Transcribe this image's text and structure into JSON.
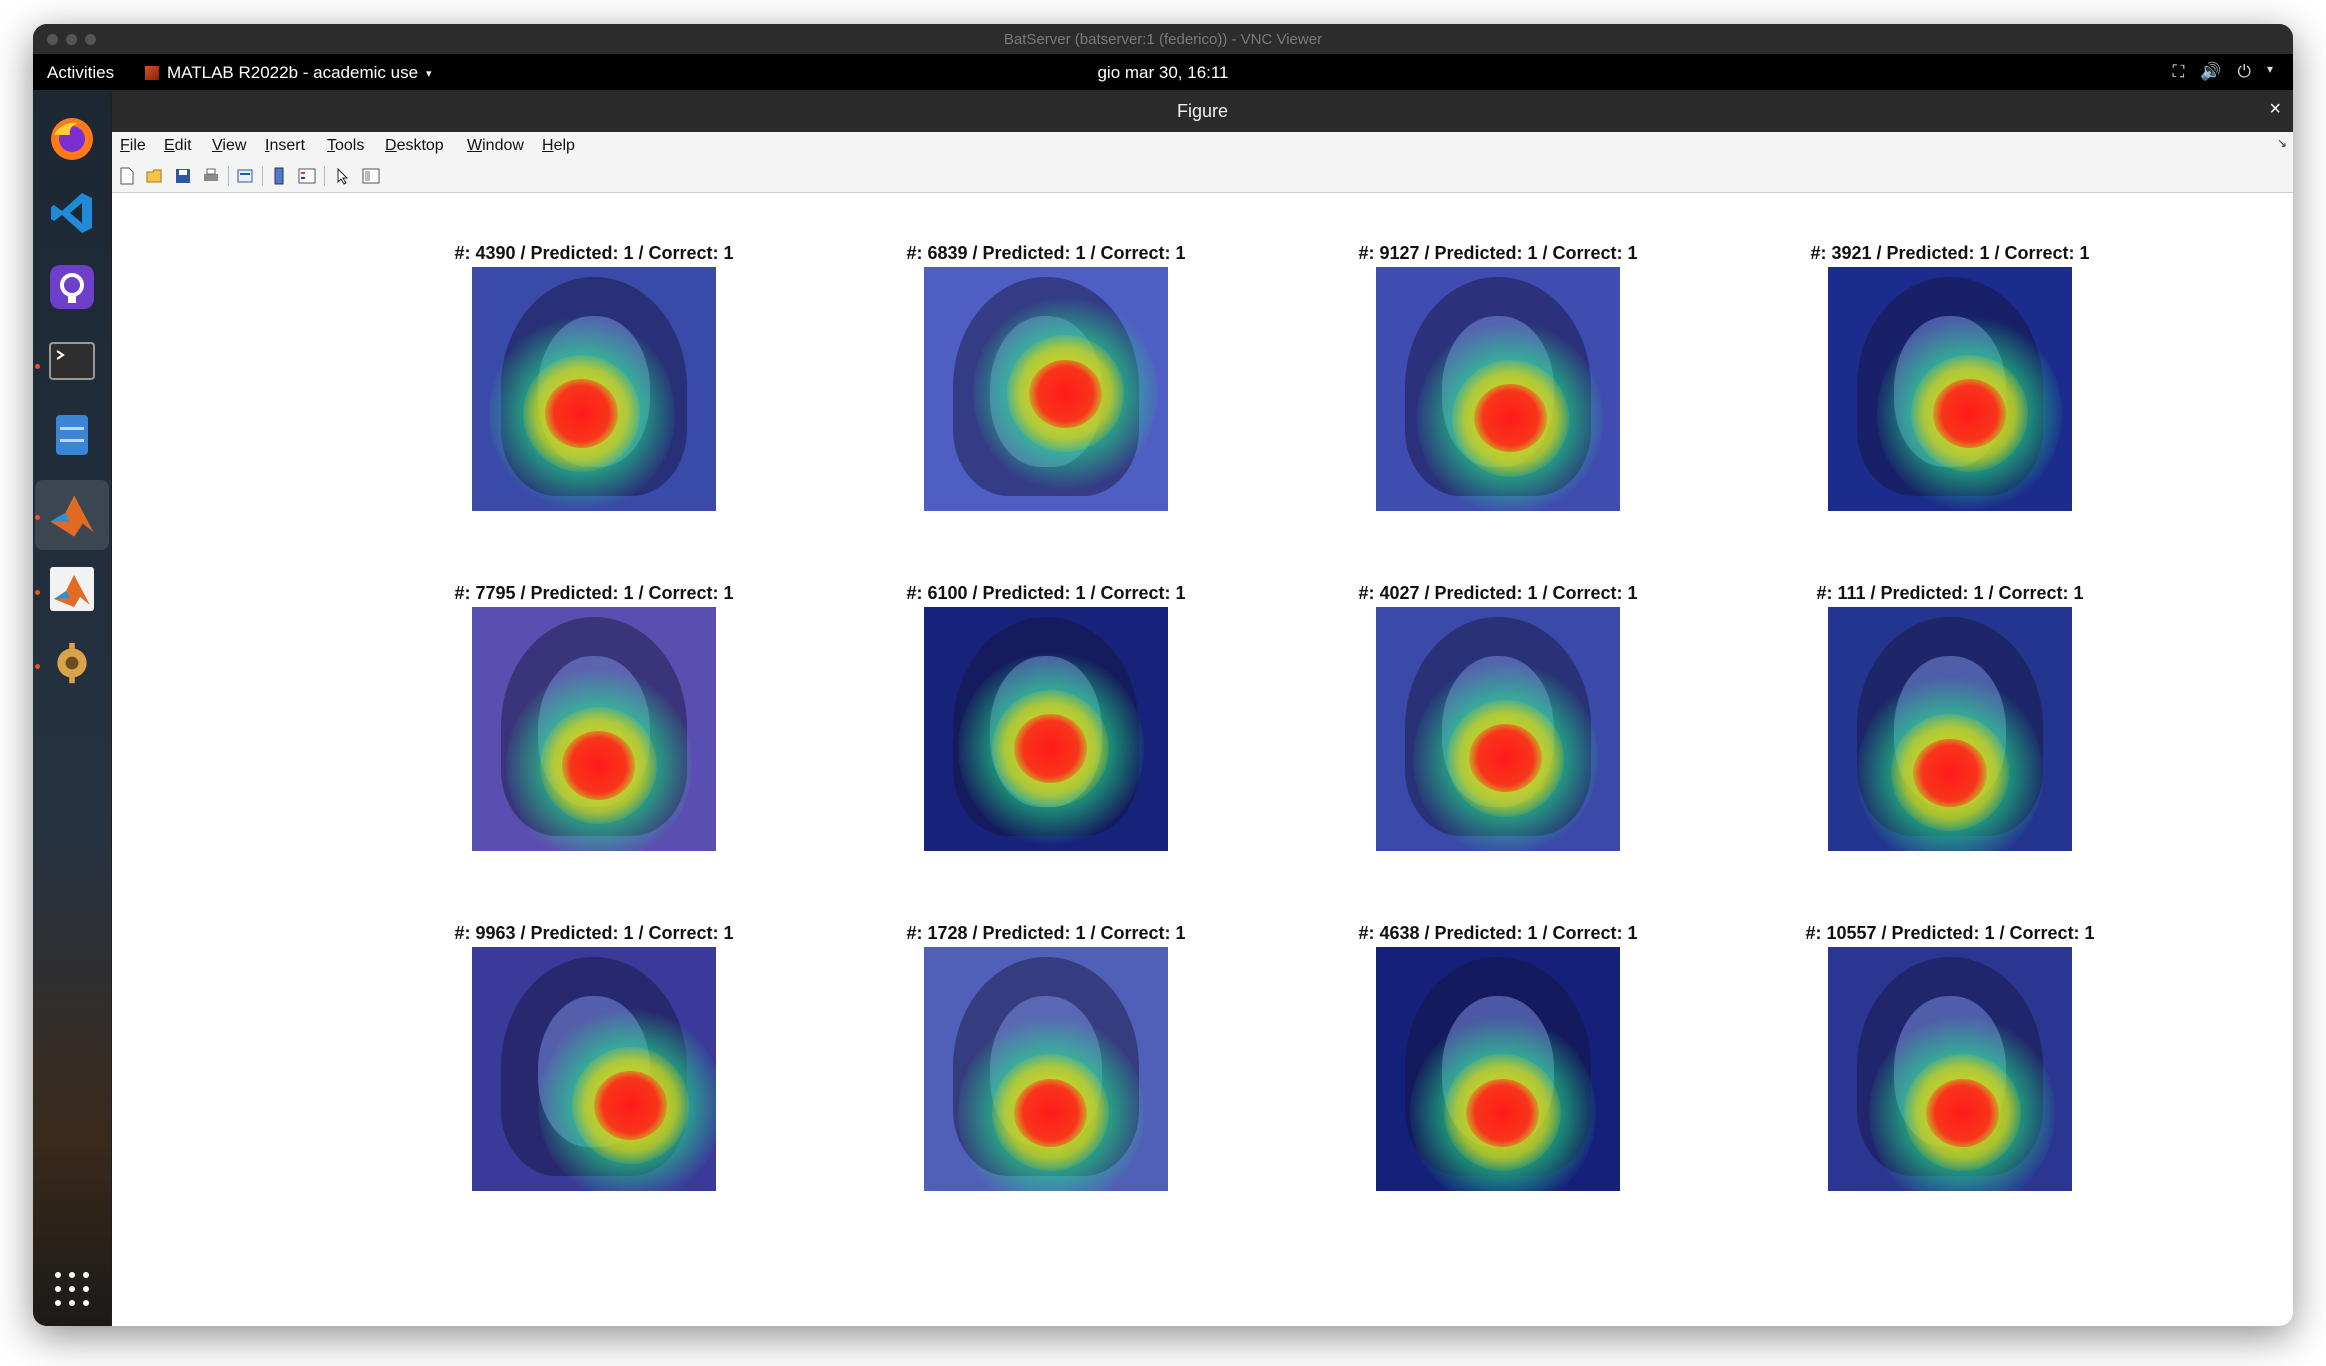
{
  "vnc": {
    "title": "BatServer (batserver:1 (federico)) - VNC Viewer"
  },
  "topbar": {
    "activities": "Activities",
    "app_name": "MATLAB R2022b - academic use",
    "clock": "gio mar 30, 16:11"
  },
  "dock": {
    "items": [
      "firefox-icon",
      "vscode-icon",
      "github-desktop-icon",
      "terminal-icon",
      "file-manager-icon",
      "matlab-icon",
      "matlab-alt-icon",
      "software-updater-icon",
      "app-grid-icon"
    ]
  },
  "figure": {
    "title": "Figure",
    "close_glyph": "×",
    "menu": [
      "File",
      "Edit",
      "View",
      "Insert",
      "Tools",
      "Desktop",
      "Window",
      "Help"
    ],
    "panels": [
      {
        "label": "#: 4390 / Predicted: 1 / Correct: 1"
      },
      {
        "label": "#: 6839 / Predicted: 1 / Correct: 1"
      },
      {
        "label": "#: 9127 / Predicted: 1 / Correct: 1"
      },
      {
        "label": "#: 3921 / Predicted: 1 / Correct: 1"
      },
      {
        "label": "#: 7795 / Predicted: 1 / Correct: 1"
      },
      {
        "label": "#: 6100 / Predicted: 1 / Correct: 1"
      },
      {
        "label": "#: 4027 / Predicted: 1 / Correct: 1"
      },
      {
        "label": "#: 111 / Predicted: 1 / Correct: 1"
      },
      {
        "label": "#: 9963 / Predicted: 1 / Correct: 1"
      },
      {
        "label": "#: 1728 / Predicted: 1 / Correct: 1"
      },
      {
        "label": "#: 4638 / Predicted: 1 / Correct: 1"
      },
      {
        "label": "#: 10557 / Predicted: 1 / Correct: 1"
      }
    ]
  },
  "colors": {
    "heat_hot": "#ff1a1a",
    "heat_warm": "#ffd400",
    "heat_mid": "#22e08a",
    "heat_cool": "#2a4bd6"
  }
}
